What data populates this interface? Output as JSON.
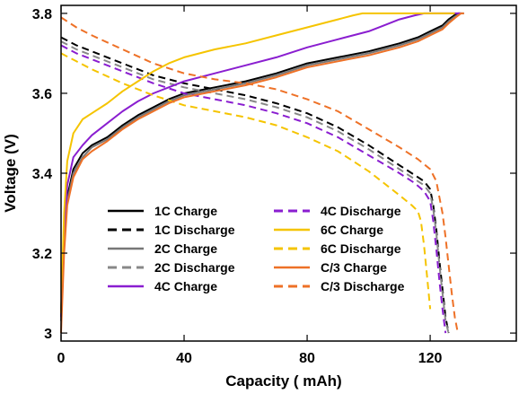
{
  "chart_data": {
    "type": "line",
    "xlabel": "Capacity ( mAh)",
    "ylabel": "Voltage (V)",
    "xlim": [
      0,
      148
    ],
    "ylim": [
      2.98,
      3.82
    ],
    "xticks": [
      0,
      40,
      80,
      120
    ],
    "yticks": [
      3,
      3.2,
      3.4,
      3.6,
      3.8
    ],
    "xtick_labels": [
      "0",
      "40",
      "80",
      "120"
    ],
    "ytick_labels": [
      "3",
      "3.2",
      "3.4",
      "3.6",
      "3.8"
    ],
    "legend_placement": "lower-center",
    "series": [
      {
        "name": "1C Charge",
        "color": "#000000",
        "dash": "solid",
        "x": [
          0,
          1,
          2,
          4,
          7,
          10,
          15,
          20,
          25,
          30,
          35,
          40,
          50,
          60,
          70,
          80,
          90,
          100,
          110,
          116,
          120,
          124,
          126,
          128,
          129,
          130
        ],
        "y": [
          3.05,
          3.24,
          3.34,
          3.41,
          3.45,
          3.47,
          3.49,
          3.52,
          3.545,
          3.565,
          3.585,
          3.6,
          3.615,
          3.63,
          3.65,
          3.675,
          3.69,
          3.705,
          3.725,
          3.74,
          3.755,
          3.77,
          3.785,
          3.796,
          3.8,
          3.8
        ]
      },
      {
        "name": "1C Discharge",
        "color": "#000000",
        "dash": "dashed",
        "x": [
          0,
          5,
          10,
          20,
          30,
          40,
          50,
          60,
          70,
          80,
          90,
          100,
          110,
          115,
          118,
          120,
          121,
          122,
          123,
          124,
          125,
          126
        ],
        "y": [
          3.74,
          3.72,
          3.705,
          3.675,
          3.645,
          3.625,
          3.61,
          3.595,
          3.575,
          3.55,
          3.515,
          3.47,
          3.42,
          3.395,
          3.38,
          3.36,
          3.32,
          3.26,
          3.18,
          3.11,
          3.04,
          3.0
        ]
      },
      {
        "name": "2C Charge",
        "color": "#777777",
        "dash": "solid",
        "x": [
          0,
          1,
          2,
          4,
          7,
          10,
          15,
          20,
          25,
          30,
          35,
          40,
          50,
          60,
          70,
          80,
          90,
          100,
          110,
          116,
          120,
          124,
          126,
          128,
          130,
          131
        ],
        "y": [
          3.03,
          3.22,
          3.33,
          3.4,
          3.44,
          3.465,
          3.485,
          3.515,
          3.54,
          3.56,
          3.58,
          3.595,
          3.61,
          3.625,
          3.645,
          3.67,
          3.685,
          3.7,
          3.72,
          3.735,
          3.75,
          3.765,
          3.78,
          3.792,
          3.8,
          3.8
        ]
      },
      {
        "name": "2C Discharge",
        "color": "#888888",
        "dash": "dashed",
        "x": [
          0,
          5,
          10,
          20,
          30,
          40,
          50,
          60,
          70,
          80,
          90,
          100,
          110,
          115,
          118,
          120,
          121,
          122,
          123,
          124,
          125,
          126
        ],
        "y": [
          3.73,
          3.71,
          3.695,
          3.665,
          3.635,
          3.615,
          3.6,
          3.585,
          3.565,
          3.54,
          3.505,
          3.46,
          3.41,
          3.385,
          3.37,
          3.35,
          3.31,
          3.25,
          3.17,
          3.1,
          3.03,
          3.0
        ]
      },
      {
        "name": "4C Charge",
        "color": "#8a1ed0",
        "dash": "solid",
        "x": [
          0,
          1,
          2,
          4,
          7,
          10,
          15,
          20,
          25,
          30,
          35,
          40,
          50,
          60,
          70,
          80,
          90,
          100,
          105,
          110,
          115,
          118,
          120,
          122,
          125,
          130
        ],
        "y": [
          3.04,
          3.25,
          3.37,
          3.44,
          3.47,
          3.495,
          3.525,
          3.555,
          3.58,
          3.6,
          3.615,
          3.63,
          3.65,
          3.67,
          3.69,
          3.715,
          3.735,
          3.755,
          3.77,
          3.785,
          3.795,
          3.8,
          3.8,
          3.8,
          3.8,
          3.8
        ]
      },
      {
        "name": "4C Discharge",
        "color": "#8a1ed0",
        "dash": "dashed",
        "x": [
          0,
          5,
          10,
          20,
          30,
          40,
          50,
          60,
          70,
          80,
          90,
          100,
          110,
          115,
          118,
          120,
          121,
          122,
          123,
          124,
          125
        ],
        "y": [
          3.72,
          3.7,
          3.685,
          3.655,
          3.625,
          3.6,
          3.585,
          3.57,
          3.55,
          3.525,
          3.49,
          3.445,
          3.4,
          3.375,
          3.355,
          3.33,
          3.28,
          3.21,
          3.13,
          3.06,
          3.0
        ]
      },
      {
        "name": "6C Charge",
        "color": "#f5c400",
        "dash": "solid",
        "x": [
          0,
          1,
          2,
          4,
          7,
          10,
          15,
          20,
          25,
          30,
          35,
          40,
          50,
          60,
          70,
          80,
          90,
          95,
          98,
          100,
          110,
          120,
          128
        ],
        "y": [
          3.05,
          3.3,
          3.43,
          3.5,
          3.535,
          3.55,
          3.575,
          3.605,
          3.63,
          3.655,
          3.675,
          3.69,
          3.71,
          3.725,
          3.745,
          3.765,
          3.785,
          3.795,
          3.8,
          3.8,
          3.8,
          3.8,
          3.8
        ]
      },
      {
        "name": "6C Discharge",
        "color": "#f5c400",
        "dash": "dashed",
        "x": [
          0,
          5,
          10,
          20,
          30,
          40,
          50,
          60,
          70,
          80,
          90,
          100,
          110,
          114,
          116,
          117,
          118,
          119,
          120
        ],
        "y": [
          3.7,
          3.68,
          3.66,
          3.625,
          3.595,
          3.57,
          3.555,
          3.54,
          3.52,
          3.49,
          3.455,
          3.405,
          3.345,
          3.32,
          3.305,
          3.28,
          3.22,
          3.14,
          3.06
        ]
      },
      {
        "name": "C/3  Charge",
        "color": "#ee7127",
        "dash": "solid",
        "x": [
          0,
          1,
          2,
          4,
          7,
          10,
          15,
          20,
          25,
          30,
          35,
          40,
          50,
          60,
          70,
          80,
          90,
          100,
          110,
          116,
          120,
          124,
          126,
          128,
          130,
          131
        ],
        "y": [
          3.0,
          3.2,
          3.32,
          3.39,
          3.435,
          3.455,
          3.48,
          3.51,
          3.535,
          3.555,
          3.575,
          3.59,
          3.605,
          3.62,
          3.64,
          3.665,
          3.68,
          3.695,
          3.715,
          3.73,
          3.745,
          3.76,
          3.775,
          3.788,
          3.8,
          3.8
        ]
      },
      {
        "name": "C/3 Discharge",
        "color": "#ee7127",
        "dash": "dashed",
        "x": [
          0,
          5,
          10,
          20,
          30,
          40,
          50,
          60,
          70,
          80,
          90,
          100,
          110,
          116,
          120,
          122,
          124,
          125,
          126,
          127,
          128,
          129
        ],
        "y": [
          3.79,
          3.765,
          3.745,
          3.71,
          3.675,
          3.65,
          3.635,
          3.625,
          3.61,
          3.585,
          3.555,
          3.51,
          3.465,
          3.435,
          3.41,
          3.38,
          3.3,
          3.24,
          3.17,
          3.1,
          3.04,
          3.0
        ]
      }
    ]
  }
}
